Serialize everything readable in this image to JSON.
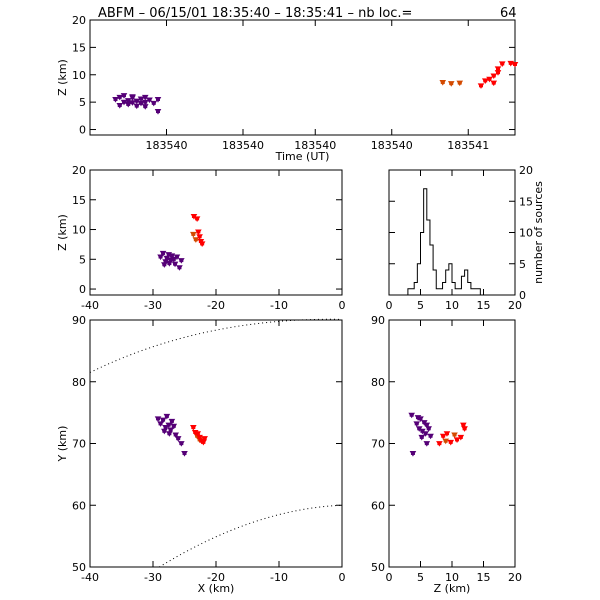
{
  "title": "ABFM – 06/15/01 18:35:40 – 18:35:41 – nb loc.=",
  "count": "64",
  "colors": {
    "early": "#550077",
    "mid": "#d34a00",
    "late": "#ff0000"
  },
  "chart_data": [
    {
      "panel": "time-height",
      "type": "scatter",
      "xlabel": "Time (UT)",
      "ylabel": "Z (km)",
      "xlim": [
        0,
        1
      ],
      "ylim": [
        -1,
        20
      ],
      "xticks": [
        {
          "v": 0.18,
          "label": "183540"
        },
        {
          "v": 0.36,
          "label": "183540"
        },
        {
          "v": 0.53,
          "label": "183540"
        },
        {
          "v": 0.71,
          "label": "183540"
        },
        {
          "v": 0.89,
          "label": "183541"
        }
      ],
      "yticks": [
        0,
        5,
        10,
        15,
        20
      ],
      "series": [
        {
          "color": "early",
          "points": [
            [
              0.06,
              5.5
            ],
            [
              0.07,
              5.9
            ],
            [
              0.07,
              4.4
            ],
            [
              0.08,
              5.0
            ],
            [
              0.08,
              6.2
            ],
            [
              0.09,
              5.3
            ],
            [
              0.09,
              4.6
            ],
            [
              0.1,
              5.8
            ],
            [
              0.1,
              4.9
            ],
            [
              0.1,
              6.0
            ],
            [
              0.11,
              5.2
            ],
            [
              0.11,
              4.3
            ],
            [
              0.12,
              5.6
            ],
            [
              0.12,
              4.8
            ],
            [
              0.13,
              5.0
            ],
            [
              0.13,
              5.9
            ],
            [
              0.13,
              4.2
            ],
            [
              0.14,
              5.4
            ],
            [
              0.15,
              4.8
            ],
            [
              0.16,
              5.5
            ],
            [
              0.16,
              3.3
            ]
          ]
        },
        {
          "color": "mid",
          "points": [
            [
              0.83,
              8.6
            ],
            [
              0.85,
              8.4
            ],
            [
              0.87,
              8.5
            ]
          ]
        },
        {
          "color": "late",
          "points": [
            [
              0.92,
              8.0
            ],
            [
              0.93,
              8.9
            ],
            [
              0.94,
              9.2
            ],
            [
              0.95,
              8.5
            ],
            [
              0.95,
              9.8
            ],
            [
              0.96,
              10.4
            ],
            [
              0.96,
              11.1
            ],
            [
              0.97,
              12.0
            ],
            [
              0.99,
              12.1
            ],
            [
              1.0,
              11.9
            ]
          ]
        }
      ]
    },
    {
      "panel": "x-z",
      "type": "scatter",
      "xlabel": "",
      "ylabel": "Z (km)",
      "xlim": [
        -40,
        0
      ],
      "ylim": [
        -1,
        20
      ],
      "xticks": [
        -40,
        -30,
        -20,
        -10,
        0
      ],
      "yticks": [
        0,
        5,
        10,
        15,
        20
      ],
      "series": [
        {
          "color": "early",
          "points": [
            [
              -28.8,
              5.4
            ],
            [
              -28.4,
              6.0
            ],
            [
              -28.0,
              4.6
            ],
            [
              -27.8,
              5.2
            ],
            [
              -27.5,
              5.8
            ],
            [
              -27.2,
              4.9
            ],
            [
              -27.0,
              5.6
            ],
            [
              -26.7,
              5.0
            ],
            [
              -26.5,
              4.2
            ],
            [
              -26.2,
              5.4
            ],
            [
              -25.8,
              3.6
            ],
            [
              -25.5,
              4.8
            ],
            [
              -28.2,
              4.1
            ],
            [
              -27.4,
              4.3
            ]
          ]
        },
        {
          "color": "mid",
          "points": [
            [
              -23.6,
              9.2
            ],
            [
              -23.2,
              8.3
            ]
          ]
        },
        {
          "color": "late",
          "points": [
            [
              -23.5,
              12.2
            ],
            [
              -23.0,
              11.8
            ],
            [
              -22.8,
              9.6
            ],
            [
              -22.6,
              8.8
            ],
            [
              -22.4,
              8.0
            ],
            [
              -22.2,
              7.6
            ]
          ]
        }
      ]
    },
    {
      "panel": "histogram",
      "type": "bar",
      "xlabel": "",
      "ylabel": "number of sources",
      "xlim": [
        0,
        20
      ],
      "ylim": [
        0,
        20
      ],
      "xticks": [
        0,
        5,
        10,
        15,
        20
      ],
      "yticks": [
        0,
        5,
        10,
        15,
        20
      ],
      "bin_width": 0.5,
      "bin_start": 3.0,
      "values": [
        1,
        1,
        2,
        5,
        10,
        17,
        12,
        8,
        4,
        1,
        1,
        2,
        4,
        5,
        2,
        1,
        1,
        3,
        4,
        2,
        1,
        1,
        1,
        0,
        0,
        0,
        0,
        0,
        0,
        0,
        0,
        0,
        0,
        0
      ]
    },
    {
      "panel": "x-y",
      "type": "scatter",
      "xlabel": "X (km)",
      "ylabel": "Y (km)",
      "xlim": [
        -40,
        0
      ],
      "ylim": [
        50,
        90
      ],
      "xticks": [
        -40,
        -30,
        -20,
        -10,
        0
      ],
      "yticks": [
        50,
        60,
        70,
        80,
        90
      ],
      "series": [
        {
          "color": "early",
          "points": [
            [
              -29.2,
              74.0
            ],
            [
              -28.8,
              73.2
            ],
            [
              -28.4,
              73.8
            ],
            [
              -28.0,
              72.6
            ],
            [
              -27.8,
              74.4
            ],
            [
              -27.5,
              73.0
            ],
            [
              -27.2,
              72.2
            ],
            [
              -27.0,
              73.6
            ],
            [
              -26.7,
              72.8
            ],
            [
              -26.4,
              71.4
            ],
            [
              -26.0,
              70.8
            ],
            [
              -25.5,
              70.0
            ],
            [
              -25.0,
              68.4
            ],
            [
              -28.2,
              72.0
            ],
            [
              -27.4,
              71.6
            ]
          ]
        },
        {
          "color": "mid",
          "points": [
            [
              -23.0,
              71.2
            ],
            [
              -22.6,
              70.6
            ]
          ]
        },
        {
          "color": "late",
          "points": [
            [
              -23.6,
              72.6
            ],
            [
              -23.3,
              71.8
            ],
            [
              -22.9,
              71.6
            ],
            [
              -22.6,
              71.0
            ],
            [
              -22.3,
              70.4
            ],
            [
              -22.0,
              70.2
            ],
            [
              -21.8,
              70.8
            ]
          ]
        }
      ]
    },
    {
      "panel": "z-y",
      "type": "scatter",
      "xlabel": "Z (km)",
      "ylabel": "",
      "xlim": [
        0,
        20
      ],
      "ylim": [
        50,
        90
      ],
      "xticks": [
        0,
        5,
        10,
        15,
        20
      ],
      "yticks": [
        50,
        60,
        70,
        80,
        90
      ],
      "series": [
        {
          "color": "early",
          "points": [
            [
              3.6,
              74.6
            ],
            [
              4.4,
              73.2
            ],
            [
              4.8,
              72.4
            ],
            [
              5.0,
              74.0
            ],
            [
              5.3,
              72.0
            ],
            [
              5.6,
              73.4
            ],
            [
              5.8,
              71.6
            ],
            [
              6.0,
              73.0
            ],
            [
              6.3,
              72.4
            ],
            [
              6.6,
              71.2
            ],
            [
              6.0,
              70.0
            ],
            [
              3.8,
              68.4
            ],
            [
              5.2,
              71.0
            ],
            [
              4.6,
              74.2
            ]
          ]
        },
        {
          "color": "mid",
          "points": [
            [
              9.0,
              70.4
            ],
            [
              10.4,
              71.4
            ]
          ]
        },
        {
          "color": "late",
          "points": [
            [
              8.6,
              71.2
            ],
            [
              9.2,
              71.6
            ],
            [
              9.8,
              70.2
            ],
            [
              10.8,
              70.6
            ],
            [
              11.4,
              71.0
            ],
            [
              12.0,
              72.4
            ],
            [
              11.8,
              73.0
            ],
            [
              8.0,
              70.0
            ]
          ]
        }
      ]
    }
  ]
}
